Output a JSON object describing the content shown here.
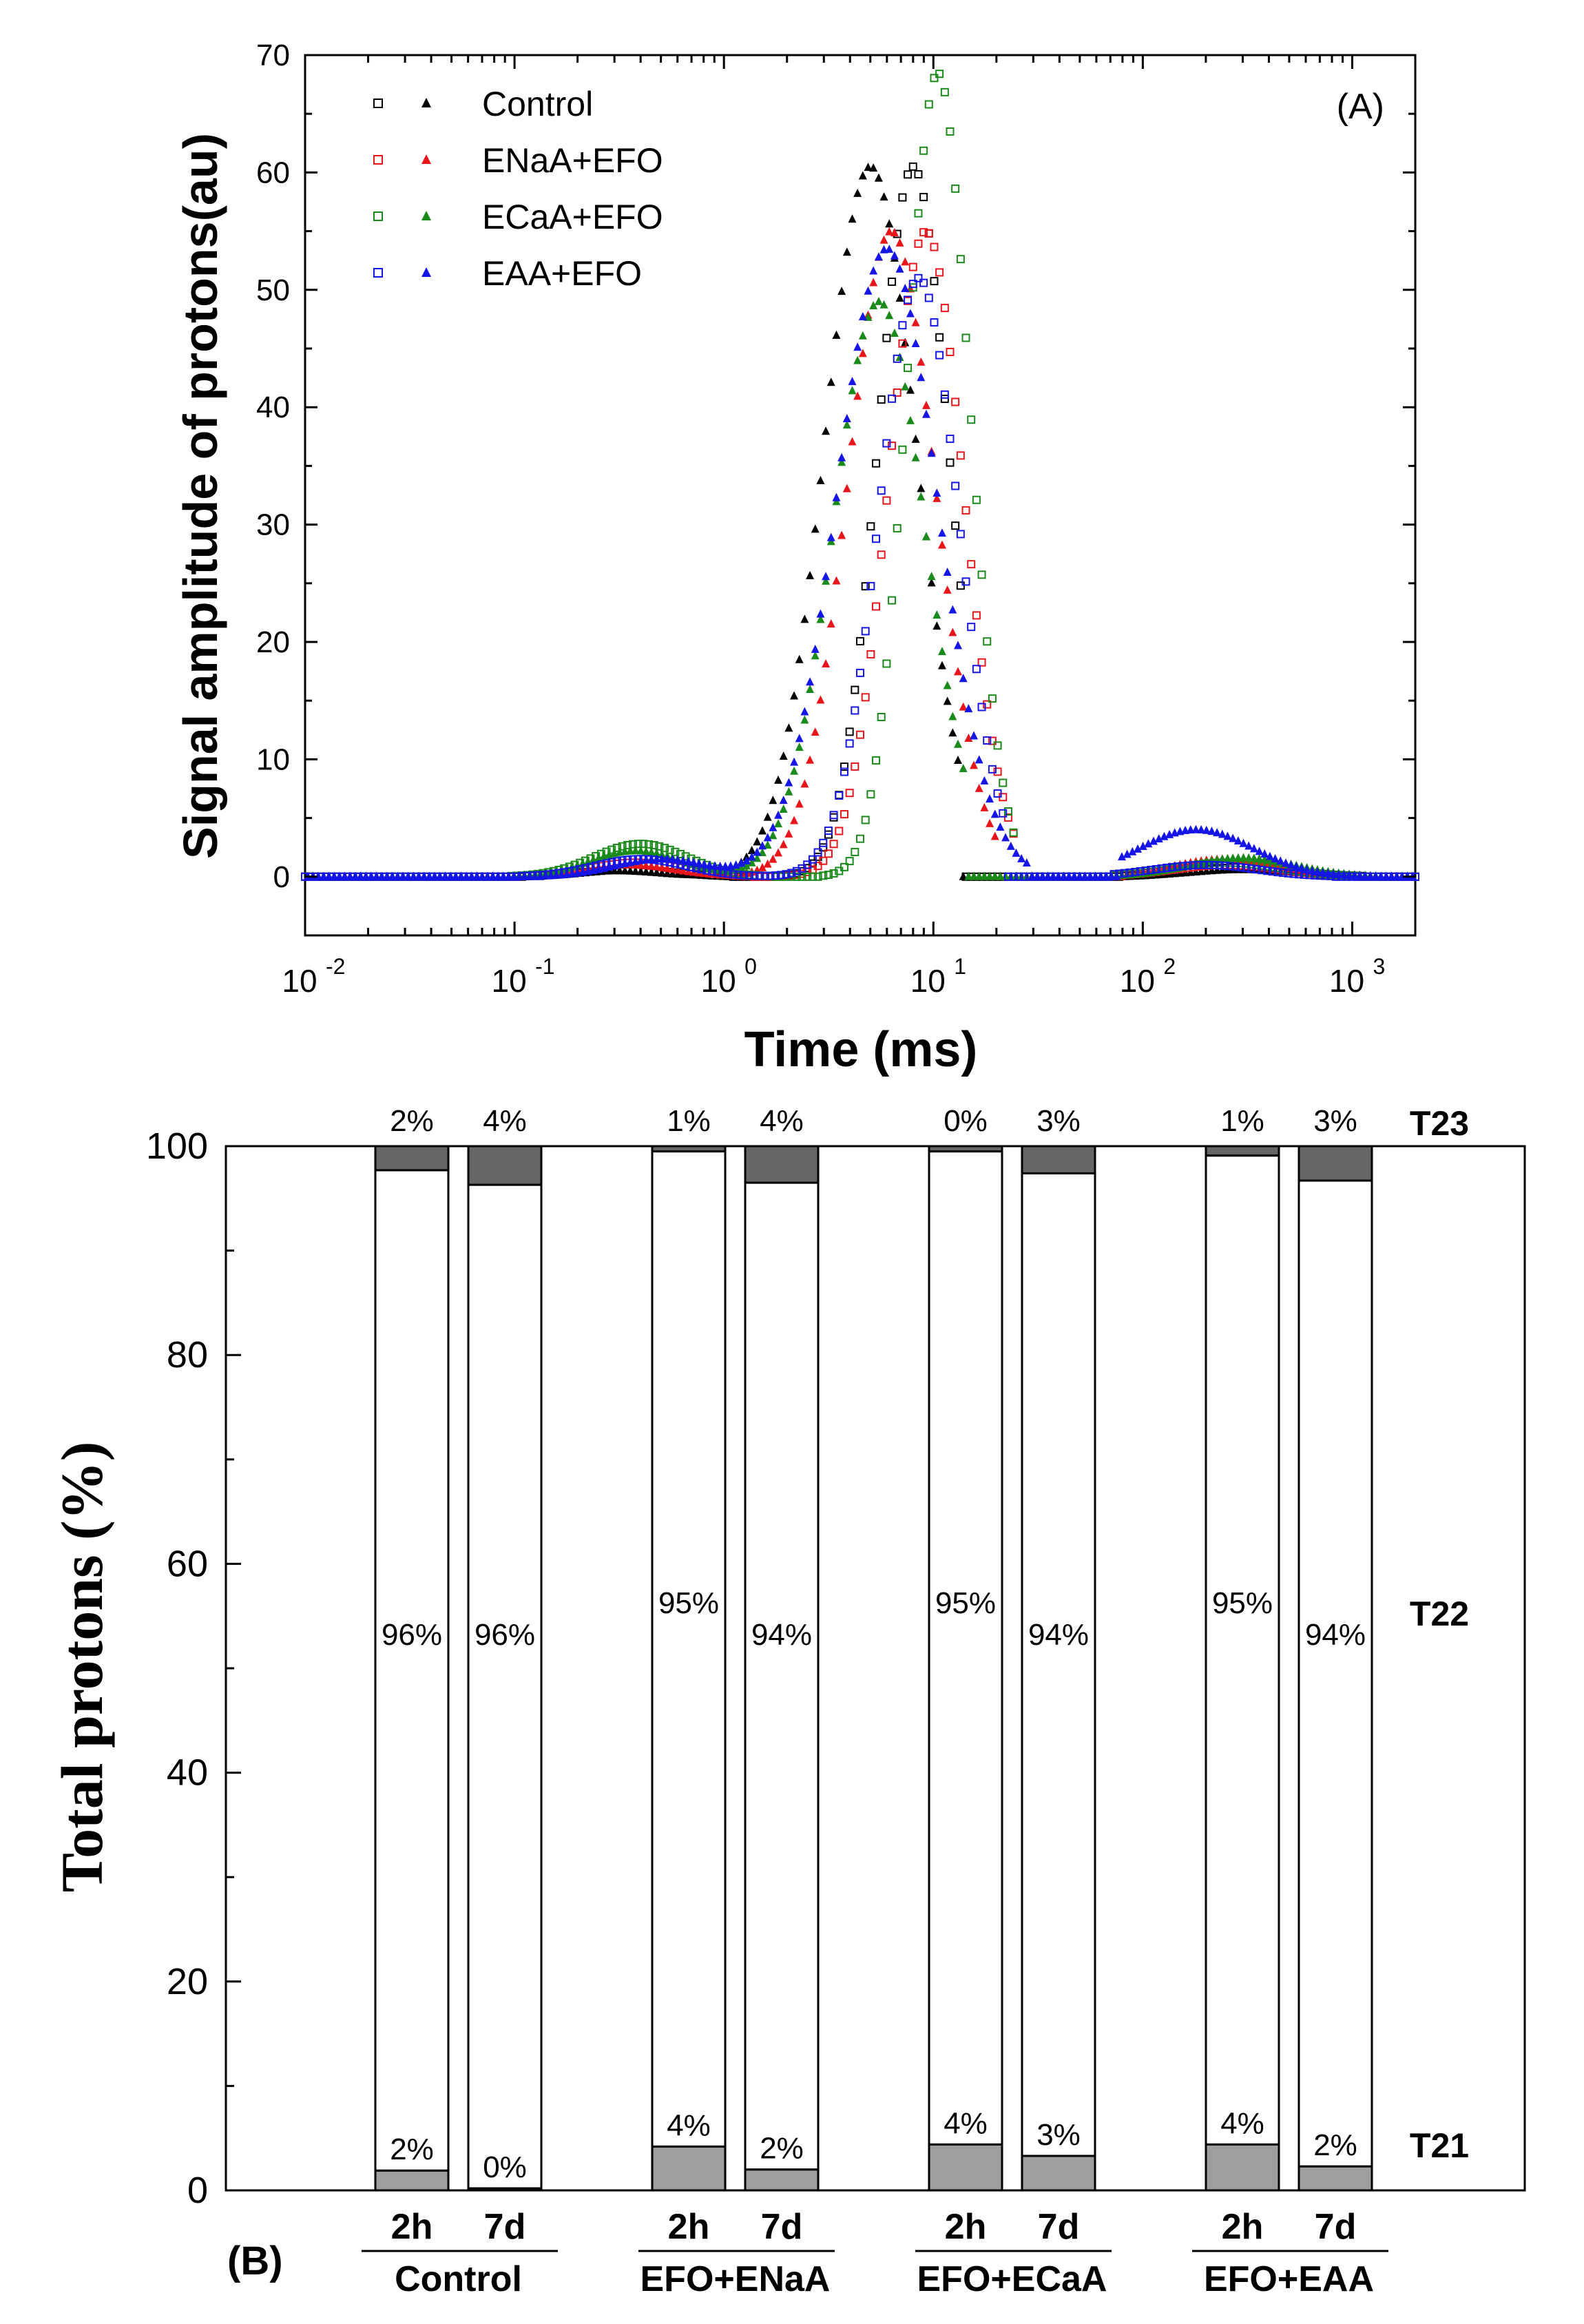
{
  "chart_data": [
    {
      "type": "scatter",
      "panel_label": "(A)",
      "xlabel": "Time (ms)",
      "ylabel": "Signal amplitude of protons(au)",
      "xscale": "log",
      "xlim": [
        0.01,
        2000
      ],
      "ylim": [
        -5,
        70
      ],
      "x_ticks": [
        {
          "base": "10",
          "exp": "-2",
          "value": 0.01
        },
        {
          "base": "10",
          "exp": "-1",
          "value": 0.1
        },
        {
          "base": "10",
          "exp": "0",
          "value": 1
        },
        {
          "base": "10",
          "exp": "1",
          "value": 10
        },
        {
          "base": "10",
          "exp": "2",
          "value": 100
        },
        {
          "base": "10",
          "exp": "3",
          "value": 1000
        }
      ],
      "y_ticks": [
        "0",
        "10",
        "20",
        "30",
        "40",
        "50",
        "60",
        "70"
      ],
      "legend_position": "top-left",
      "series": [
        {
          "name": "Control",
          "color": "#000000",
          "open": {
            "peaks": [
              {
                "center": 8.0,
                "height": 60.5,
                "width": 0.17
              },
              {
                "center": 0.35,
                "height": 0.6,
                "width": 0.22
              },
              {
                "center": 300,
                "height": 0.8,
                "width": 0.25
              }
            ],
            "gap": [
              14,
              60
            ]
          },
          "filled": {
            "peaks": [
              {
                "center": 5.0,
                "height": 60.5,
                "width": 0.22
              },
              {
                "center": 0.3,
                "height": 0.5,
                "width": 0.22
              },
              {
                "center": 300,
                "height": 0.6,
                "width": 0.25
              }
            ],
            "gap": [
              13.5,
              60
            ]
          }
        },
        {
          "name": "ENaA+EFO",
          "color": "#e8161b",
          "open": {
            "peaks": [
              {
                "center": 9.2,
                "height": 55.0,
                "width": 0.18
              },
              {
                "center": 0.38,
                "height": 1.2,
                "width": 0.22
              },
              {
                "center": 250,
                "height": 1.0,
                "width": 0.25
              }
            ],
            "gap": [
              25,
              70
            ]
          },
          "filled": {
            "peaks": [
              {
                "center": 6.3,
                "height": 55.0,
                "width": 0.21
              },
              {
                "center": 0.35,
                "height": 1.0,
                "width": 0.22
              },
              {
                "center": 250,
                "height": 1.5,
                "width": 0.25
              }
            ],
            "gap": [
              20,
              80
            ]
          }
        },
        {
          "name": "ECaA+EFO",
          "color": "#1a8a1a",
          "open": {
            "peaks": [
              {
                "center": 10.5,
                "height": 68.5,
                "width": 0.15
              },
              {
                "center": 0.4,
                "height": 2.8,
                "width": 0.22
              },
              {
                "center": 250,
                "height": 1.2,
                "width": 0.25
              }
            ],
            "gap": [
              25,
              70
            ]
          },
          "filled": {
            "peaks": [
              {
                "center": 5.5,
                "height": 49.0,
                "width": 0.22
              },
              {
                "center": 0.38,
                "height": 2.2,
                "width": 0.22
              },
              {
                "center": 300,
                "height": 1.6,
                "width": 0.25
              }
            ],
            "gap": [
              14.5,
              70
            ]
          }
        },
        {
          "name": "EAA+EFO",
          "color": "#1515e6",
          "open": {
            "peaks": [
              {
                "center": 8.5,
                "height": 51.0,
                "width": 0.19
              },
              {
                "center": 0.4,
                "height": 1.5,
                "width": 0.22
              },
              {
                "center": 200,
                "height": 1.0,
                "width": 0.25
              }
            ],
            "gap": [
              22,
              70
            ]
          },
          "filled": {
            "peaks": [
              {
                "center": 6.0,
                "height": 53.5,
                "width": 0.24
              },
              {
                "center": 0.5,
                "height": 1.5,
                "width": 0.22
              },
              {
                "center": 180,
                "height": 4.0,
                "width": 0.27
              }
            ],
            "gap": [
              28,
              75
            ]
          }
        }
      ]
    },
    {
      "type": "bar",
      "stacked": true,
      "panel_label": "(B)",
      "ylabel": "Total protons (%)",
      "ylim": [
        0,
        100
      ],
      "y_ticks": [
        "0",
        "20",
        "40",
        "60",
        "80",
        "100"
      ],
      "groups": [
        {
          "name": "Control",
          "bars": [
            {
              "label": "2h",
              "T21": 1.9,
              "T22": 95.8,
              "T23": 2.3,
              "labels": {
                "T21": "2%",
                "T22": "96%",
                "T23": "2%"
              }
            },
            {
              "label": "7d",
              "T21": 0.2,
              "T22": 96.1,
              "T23": 3.7,
              "labels": {
                "T21": "0%",
                "T22": "96%",
                "T23": "4%"
              }
            }
          ]
        },
        {
          "name": "EFO+ENaA",
          "bars": [
            {
              "label": "2h",
              "T21": 4.2,
              "T22": 95.3,
              "T23": 0.5,
              "labels": {
                "T21": "4%",
                "T22": "95%",
                "T23": "1%"
              }
            },
            {
              "label": "7d",
              "T21": 2.0,
              "T22": 94.5,
              "T23": 3.5,
              "labels": {
                "T21": "2%",
                "T22": "94%",
                "T23": "4%"
              }
            }
          ]
        },
        {
          "name": "EFO+ECaA",
          "bars": [
            {
              "label": "2h",
              "T21": 4.4,
              "T22": 95.1,
              "T23": 0.5,
              "labels": {
                "T21": "4%",
                "T22": "95%",
                "T23": "0%"
              }
            },
            {
              "label": "7d",
              "T21": 3.3,
              "T22": 94.1,
              "T23": 2.6,
              "labels": {
                "T21": "3%",
                "T22": "94%",
                "T23": "3%"
              }
            }
          ]
        },
        {
          "name": "EFO+EAA",
          "bars": [
            {
              "label": "2h",
              "T21": 4.4,
              "T22": 94.7,
              "T23": 0.9,
              "labels": {
                "T21": "4%",
                "T22": "95%",
                "T23": "1%"
              }
            },
            {
              "label": "7d",
              "T21": 2.3,
              "T22": 94.4,
              "T23": 3.3,
              "labels": {
                "T21": "2%",
                "T22": "94%",
                "T23": "3%"
              }
            }
          ]
        }
      ],
      "segments": [
        {
          "key": "T21",
          "label": "T21",
          "color": "#9e9e9e"
        },
        {
          "key": "T22",
          "label": "T22",
          "color": "#ffffff"
        },
        {
          "key": "T23",
          "label": "T23",
          "color": "#666666"
        }
      ]
    }
  ]
}
